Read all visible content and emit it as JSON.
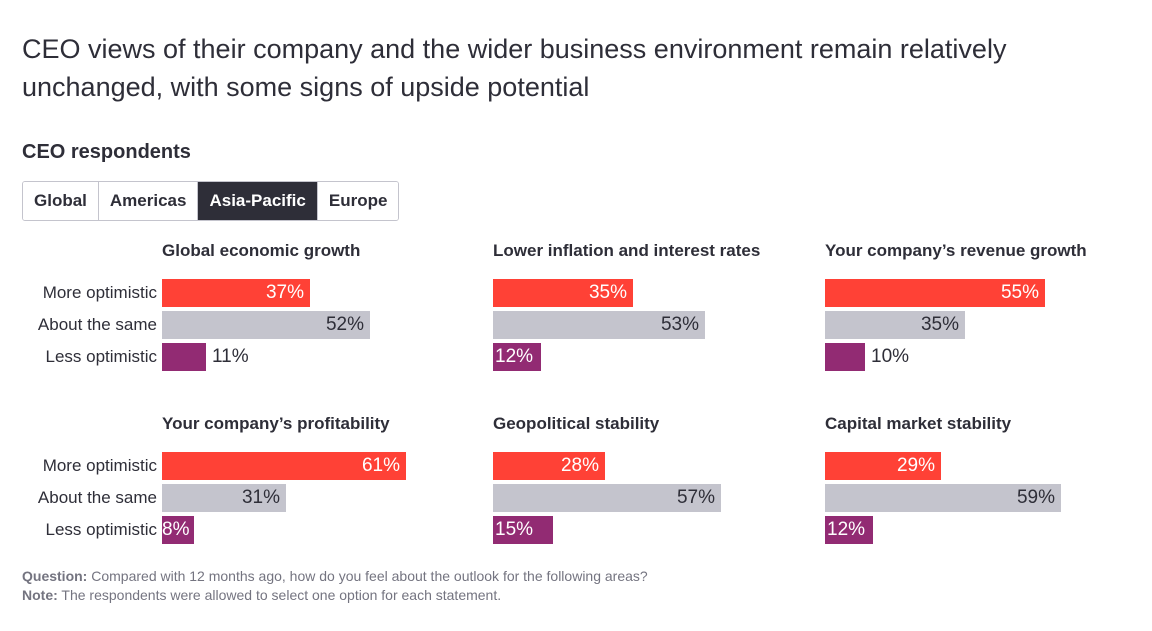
{
  "title": "CEO views of their company and the wider business environment remain relatively unchanged, with some signs of upside potential",
  "subtitle": "CEO respondents",
  "tabs": [
    {
      "label": "Global",
      "active": false
    },
    {
      "label": "Americas",
      "active": false
    },
    {
      "label": "Asia-Pacific",
      "active": true
    },
    {
      "label": "Europe",
      "active": false
    }
  ],
  "colors": {
    "more_optimistic": "#ff4136",
    "about_the_same": "#c4c4cd",
    "less_optimistic": "#922b73"
  },
  "chart_data": {
    "type": "bar",
    "orientation": "horizontal",
    "categories": [
      "More optimistic",
      "About the same",
      "Less optimistic"
    ],
    "unit": "%",
    "panels": [
      {
        "title": "Global economic growth",
        "values": [
          37,
          52,
          11
        ]
      },
      {
        "title": "Lower inflation and interest rates",
        "values": [
          35,
          53,
          12
        ]
      },
      {
        "title": "Your company’s revenue growth",
        "values": [
          55,
          35,
          10
        ]
      },
      {
        "title": "Your company’s profitability",
        "values": [
          61,
          31,
          8
        ]
      },
      {
        "title": "Geopolitical stability",
        "values": [
          28,
          57,
          15
        ]
      },
      {
        "title": "Capital market stability",
        "values": [
          29,
          59,
          12
        ]
      }
    ]
  },
  "footnote": {
    "question_label": "Question:",
    "question_text": " Compared with 12 months ago, how do you feel about the outlook for the following areas?",
    "note_label": "Note:",
    "note_text": " The respondents were allowed to select one option for each statement."
  }
}
